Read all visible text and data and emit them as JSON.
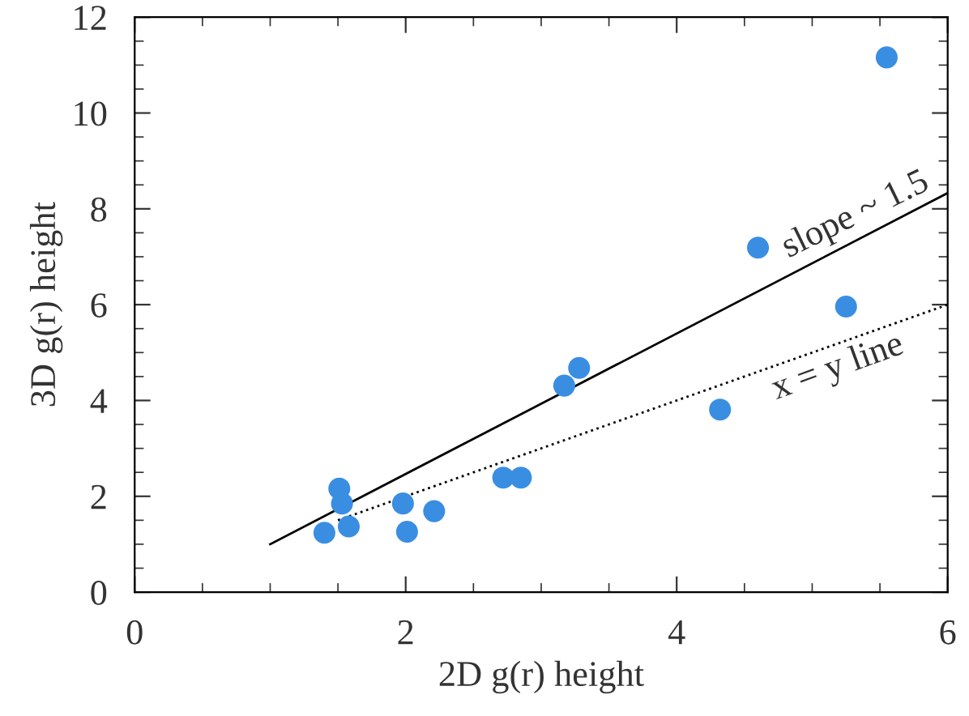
{
  "chart_data": {
    "type": "scatter",
    "xlabel": "2D g(r) height",
    "ylabel": "3D g(r) height",
    "xlim": [
      0,
      6
    ],
    "ylim": [
      0,
      12
    ],
    "xticks": [
      0,
      2,
      4,
      6
    ],
    "yticks": [
      0,
      2,
      4,
      6,
      8,
      10,
      12
    ],
    "grid": false,
    "legend": false,
    "series": [
      {
        "color": "#3a8ee2",
        "marker": "circle",
        "x": [
          1.4,
          1.51,
          1.53,
          1.58,
          1.98,
          2.01,
          2.21,
          2.72,
          2.85,
          3.17,
          3.28,
          4.32,
          4.6,
          5.25,
          5.55
        ],
        "values": [
          1.24,
          2.16,
          1.85,
          1.37,
          1.85,
          1.26,
          1.69,
          2.39,
          2.39,
          4.31,
          4.68,
          3.81,
          7.19,
          5.96,
          11.16
        ]
      },
      {
        "type": "line",
        "color": "#000000",
        "line_style": "solid",
        "marker": "none",
        "x": [
          1.0,
          6.0
        ],
        "values": [
          1.0,
          8.33
        ]
      },
      {
        "type": "line",
        "color": "#000000",
        "line_style": "dotted",
        "marker": "none",
        "x": [
          1.5,
          6.0
        ],
        "values": [
          1.5,
          6.0
        ]
      }
    ],
    "annotations": [
      "slope ~ 1.5",
      "x = y line"
    ]
  }
}
